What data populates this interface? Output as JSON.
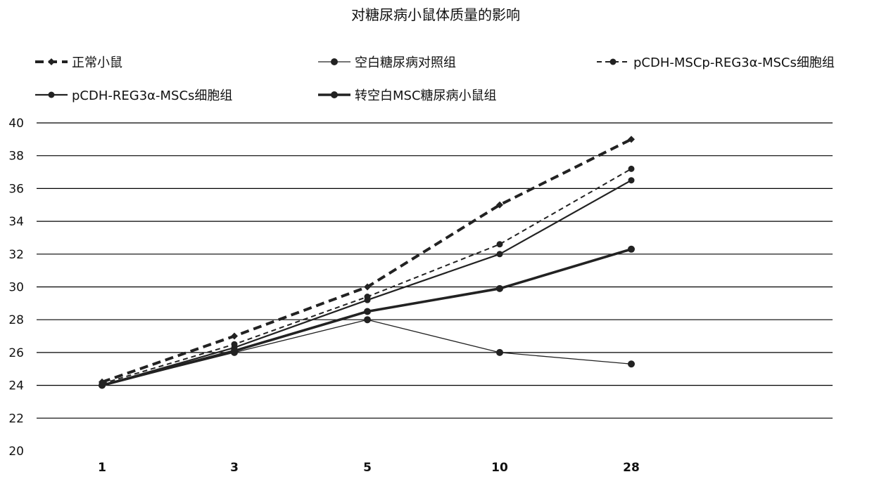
{
  "chart_data": {
    "type": "line",
    "title": "对糖尿病小鼠体质量的影响",
    "xlabel": "",
    "ylabel": "",
    "categories": [
      "1",
      "3",
      "5",
      "10",
      "28"
    ],
    "ylim": [
      20,
      40
    ],
    "yticks": [
      20,
      22,
      24,
      26,
      28,
      30,
      32,
      34,
      36,
      38,
      40
    ],
    "grid": true,
    "legend_position": "top",
    "series": [
      {
        "name": "正常小鼠",
        "values": [
          24.2,
          27.0,
          30.0,
          35.0,
          39.0
        ],
        "color": "#222222",
        "style": "dashed-bold"
      },
      {
        "name": "空白糖尿病对照组",
        "values": [
          24.0,
          26.0,
          28.0,
          26.0,
          25.3
        ],
        "color": "#222222",
        "style": "thin"
      },
      {
        "name": "pCDH-MSCp-REG3α-MSCs细胞组",
        "values": [
          24.1,
          26.5,
          29.4,
          32.6,
          37.2
        ],
        "color": "#222222",
        "style": "dashed-thin"
      },
      {
        "name": "pCDH-REG3α-MSCs细胞组",
        "values": [
          24.0,
          26.3,
          29.2,
          32.0,
          36.5
        ],
        "color": "#222222",
        "style": "solid"
      },
      {
        "name": "转空白MSC糖尿病小鼠组",
        "values": [
          24.0,
          26.1,
          28.5,
          29.9,
          32.3
        ],
        "color": "#222222",
        "style": "bold"
      }
    ]
  }
}
